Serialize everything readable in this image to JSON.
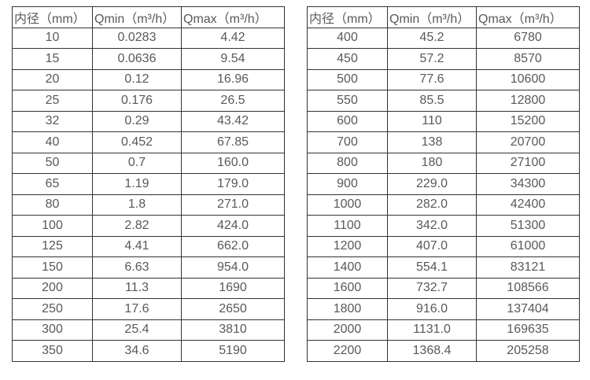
{
  "colors": {
    "border": "#333333",
    "text": "#595959",
    "background": "#ffffff"
  },
  "tables": [
    {
      "name": "small-diameters",
      "headers": [
        "内径（mm）",
        "Qmin（m³/h）",
        "Qmax（m³/h）"
      ],
      "rows": [
        [
          "10",
          "0.0283",
          "4.42"
        ],
        [
          "15",
          "0.0636",
          "9.54"
        ],
        [
          "20",
          "0.12",
          "16.96"
        ],
        [
          "25",
          "0.176",
          "26.5"
        ],
        [
          "32",
          "0.29",
          "43.42"
        ],
        [
          "40",
          "0.452",
          "67.85"
        ],
        [
          "50",
          "0.7",
          "160.0"
        ],
        [
          "65",
          "1.19",
          "179.0"
        ],
        [
          "80",
          "1.8",
          "271.0"
        ],
        [
          "100",
          "2.82",
          "424.0"
        ],
        [
          "125",
          "4.41",
          "662.0"
        ],
        [
          "150",
          "6.63",
          "954.0"
        ],
        [
          "200",
          "11.3",
          "1690"
        ],
        [
          "250",
          "17.6",
          "2650"
        ],
        [
          "300",
          "25.4",
          "3810"
        ],
        [
          "350",
          "34.6",
          "5190"
        ]
      ]
    },
    {
      "name": "large-diameters",
      "headers": [
        "内径（mm）",
        "Qmin（m³/h）",
        "Qmax（m³/h）"
      ],
      "rows": [
        [
          "400",
          "45.2",
          "6780"
        ],
        [
          "450",
          "57.2",
          "8570"
        ],
        [
          "500",
          "77.6",
          "10600"
        ],
        [
          "550",
          "85.5",
          "12800"
        ],
        [
          "600",
          "110",
          "15200"
        ],
        [
          "700",
          "138",
          "20700"
        ],
        [
          "800",
          "180",
          "27100"
        ],
        [
          "900",
          "229.0",
          "34300"
        ],
        [
          "1000",
          "282.0",
          "42400"
        ],
        [
          "1100",
          "342.0",
          "51300"
        ],
        [
          "1200",
          "407.0",
          "61000"
        ],
        [
          "1400",
          "554.1",
          "83121"
        ],
        [
          "1600",
          "732.7",
          "108566"
        ],
        [
          "1800",
          "916.0",
          "137404"
        ],
        [
          "2000",
          "1131.0",
          "169635"
        ],
        [
          "2200",
          "1368.4",
          "205258"
        ]
      ]
    }
  ]
}
